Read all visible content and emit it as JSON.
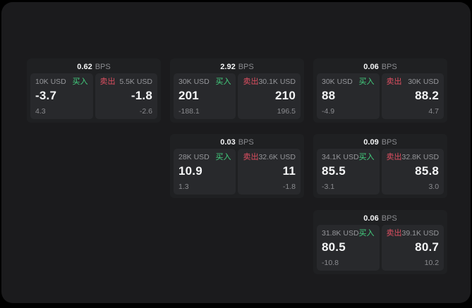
{
  "colors": {
    "window_bg": "#1b1b1d",
    "card_bg": "#1f2022",
    "panel_bg": "#28292c",
    "text_primary": "#f4f5f6",
    "text_muted": "#96979b",
    "text_dim": "#8b8c90",
    "buy_green": "#43d17f",
    "sell_red": "#de4f61"
  },
  "labels": {
    "bps_unit": "BPS",
    "buy": "买入",
    "sell": "卖出"
  },
  "cards": [
    {
      "bps": "0.62",
      "buy": {
        "amount": "10K USD",
        "price": "-3.7",
        "delta": "4.3"
      },
      "sell": {
        "amount": "5.5K USD",
        "price": "-1.8",
        "delta": "-2.6"
      }
    },
    {
      "bps": "2.92",
      "buy": {
        "amount": "30K USD",
        "price": "201",
        "delta": "-188.1"
      },
      "sell": {
        "amount": "30.1K USD",
        "price": "210",
        "delta": "196.5"
      }
    },
    {
      "bps": "0.06",
      "buy": {
        "amount": "30K USD",
        "price": "88",
        "delta": "-4.9"
      },
      "sell": {
        "amount": "30K USD",
        "price": "88.2",
        "delta": "4.7"
      }
    },
    {
      "bps": "0.03",
      "buy": {
        "amount": "28K USD",
        "price": "10.9",
        "delta": "1.3"
      },
      "sell": {
        "amount": "32.6K USD",
        "price": "11",
        "delta": "-1.8"
      }
    },
    {
      "bps": "0.09",
      "buy": {
        "amount": "34.1K USD",
        "price": "85.5",
        "delta": "-3.1"
      },
      "sell": {
        "amount": "32.8K USD",
        "price": "85.8",
        "delta": "3.0"
      }
    },
    {
      "bps": "0.06",
      "buy": {
        "amount": "31.8K USD",
        "price": "80.5",
        "delta": "-10.8"
      },
      "sell": {
        "amount": "39.1K USD",
        "price": "80.7",
        "delta": "10.2"
      }
    }
  ]
}
